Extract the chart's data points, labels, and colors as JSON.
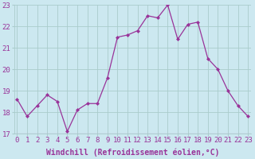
{
  "x": [
    0,
    1,
    2,
    3,
    4,
    5,
    6,
    7,
    8,
    9,
    10,
    11,
    12,
    13,
    14,
    15,
    16,
    17,
    18,
    19,
    20,
    21,
    22,
    23
  ],
  "y": [
    18.6,
    17.8,
    18.3,
    18.8,
    18.5,
    17.1,
    18.1,
    18.4,
    18.4,
    19.6,
    21.5,
    21.6,
    21.8,
    22.5,
    22.4,
    23.0,
    21.4,
    22.1,
    22.2,
    20.5,
    20.0,
    19.0,
    18.3,
    17.8
  ],
  "line_color": "#993399",
  "marker": "D",
  "marker_size": 2.0,
  "linewidth": 0.9,
  "background_color": "#cce8f0",
  "grid_color": "#aacccc",
  "xlabel": "Windchill (Refroidissement éolien,°C)",
  "xlabel_fontsize": 7,
  "tick_fontsize": 6.5,
  "ylim": [
    17,
    23
  ],
  "yticks": [
    17,
    18,
    19,
    20,
    21,
    22,
    23
  ],
  "xticks": [
    0,
    1,
    2,
    3,
    4,
    5,
    6,
    7,
    8,
    9,
    10,
    11,
    12,
    13,
    14,
    15,
    16,
    17,
    18,
    19,
    20,
    21,
    22,
    23
  ]
}
